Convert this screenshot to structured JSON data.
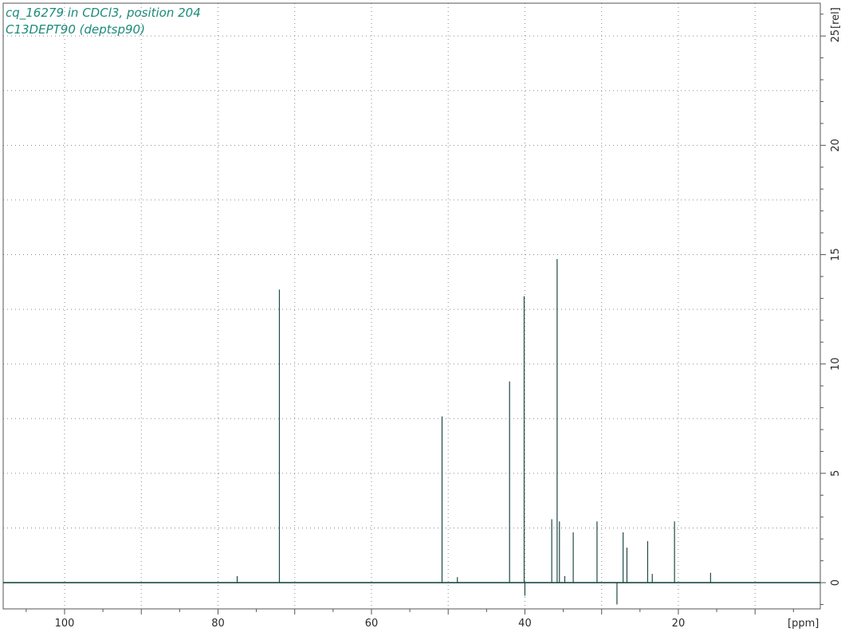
{
  "title_lines": [
    "cq_16279 in CDCl3, position 204",
    "C13DEPT90 (deptsp90)"
  ],
  "colors": {
    "trace": "#1f4a45",
    "title": "#1b8a7a",
    "axis": "#555555",
    "grid": "#8a8a8a",
    "background": "#ffffff"
  },
  "chart_data": {
    "type": "line",
    "title": "",
    "xlabel": "[ppm]",
    "ylabel": "[rel]",
    "x_reversed": true,
    "xlim": [
      108,
      1.5
    ],
    "ylim": [
      -1.2,
      26.5
    ],
    "grid": true,
    "x_ticks": [
      100,
      80,
      60,
      40,
      20
    ],
    "x_tick_labels": [
      "100",
      "80",
      "60",
      "40",
      "20"
    ],
    "y_ticks": [
      0,
      5,
      10,
      15,
      20,
      25
    ],
    "y_tick_labels": [
      "0",
      "5",
      "10",
      "15",
      "20",
      "25"
    ],
    "baseline": 0,
    "peaks": [
      {
        "ppm": 77.5,
        "intensity": 0.3
      },
      {
        "ppm": 72.0,
        "intensity": 13.4
      },
      {
        "ppm": 50.8,
        "intensity": 7.6
      },
      {
        "ppm": 48.8,
        "intensity": 0.25
      },
      {
        "ppm": 42.0,
        "intensity": 9.2
      },
      {
        "ppm": 40.1,
        "intensity": 13.1
      },
      {
        "ppm": 40.0,
        "intensity": -0.6
      },
      {
        "ppm": 36.5,
        "intensity": 2.9
      },
      {
        "ppm": 35.8,
        "intensity": 14.8
      },
      {
        "ppm": 35.5,
        "intensity": 2.8
      },
      {
        "ppm": 34.8,
        "intensity": 0.3
      },
      {
        "ppm": 33.7,
        "intensity": 2.3
      },
      {
        "ppm": 30.6,
        "intensity": 2.8
      },
      {
        "ppm": 28.0,
        "intensity": -1.0
      },
      {
        "ppm": 27.2,
        "intensity": 2.3
      },
      {
        "ppm": 26.7,
        "intensity": 1.6
      },
      {
        "ppm": 24.0,
        "intensity": 1.9
      },
      {
        "ppm": 23.4,
        "intensity": 0.4
      },
      {
        "ppm": 20.5,
        "intensity": 2.8
      },
      {
        "ppm": 15.8,
        "intensity": 0.45
      }
    ]
  }
}
